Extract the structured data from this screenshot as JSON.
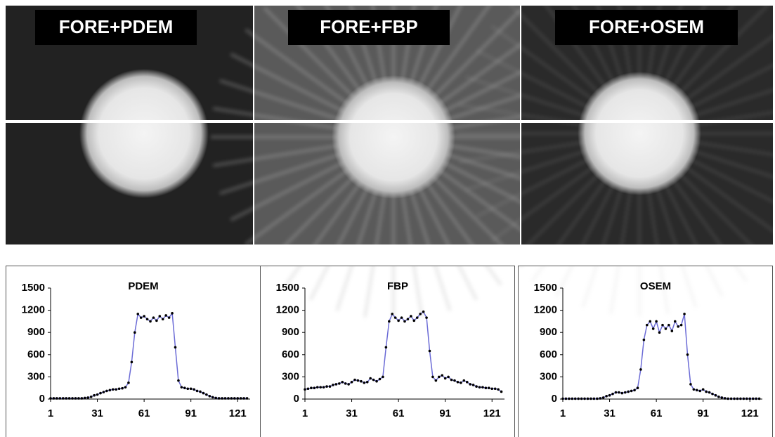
{
  "images": [
    {
      "label": "FORE+PDEM"
    },
    {
      "label": "FORE+FBP"
    },
    {
      "label": "FORE+OSEM"
    }
  ],
  "chart_data": [
    {
      "type": "line",
      "title": "PDEM",
      "color": "#6b6bd6",
      "x": [
        1,
        3,
        5,
        7,
        9,
        11,
        13,
        15,
        17,
        19,
        21,
        23,
        25,
        27,
        29,
        31,
        33,
        35,
        37,
        39,
        41,
        43,
        45,
        47,
        49,
        51,
        53,
        55,
        57,
        59,
        61,
        63,
        65,
        67,
        69,
        71,
        73,
        75,
        77,
        79,
        81,
        83,
        85,
        87,
        89,
        91,
        93,
        95,
        97,
        99,
        101,
        103,
        105,
        107,
        109,
        111,
        113,
        115,
        117,
        119,
        121,
        123,
        125,
        127
      ],
      "values": [
        10,
        10,
        10,
        10,
        10,
        10,
        10,
        10,
        10,
        10,
        10,
        15,
        20,
        30,
        50,
        60,
        80,
        95,
        110,
        120,
        130,
        130,
        140,
        145,
        160,
        220,
        500,
        900,
        1150,
        1100,
        1120,
        1080,
        1050,
        1100,
        1060,
        1120,
        1080,
        1130,
        1100,
        1160,
        700,
        250,
        160,
        150,
        140,
        140,
        130,
        110,
        100,
        80,
        60,
        40,
        25,
        15,
        10,
        10,
        10,
        10,
        10,
        10,
        10,
        10,
        10,
        10
      ],
      "xlim": [
        1,
        129
      ],
      "xticks": [
        1,
        31,
        61,
        91,
        121
      ],
      "ylim": [
        0,
        1500
      ],
      "yticks": [
        0,
        300,
        600,
        900,
        1200,
        1500
      ]
    },
    {
      "type": "line",
      "title": "FBP",
      "color": "#6b6bd6",
      "x": [
        1,
        3,
        5,
        7,
        9,
        11,
        13,
        15,
        17,
        19,
        21,
        23,
        25,
        27,
        29,
        31,
        33,
        35,
        37,
        39,
        41,
        43,
        45,
        47,
        49,
        51,
        53,
        55,
        57,
        59,
        61,
        63,
        65,
        67,
        69,
        71,
        73,
        75,
        77,
        79,
        81,
        83,
        85,
        87,
        89,
        91,
        93,
        95,
        97,
        99,
        101,
        103,
        105,
        107,
        109,
        111,
        113,
        115,
        117,
        119,
        121,
        123,
        125,
        127
      ],
      "values": [
        130,
        140,
        150,
        150,
        160,
        160,
        160,
        170,
        170,
        190,
        200,
        210,
        230,
        210,
        200,
        230,
        260,
        250,
        240,
        220,
        230,
        280,
        260,
        240,
        270,
        300,
        700,
        1050,
        1150,
        1100,
        1060,
        1100,
        1050,
        1080,
        1120,
        1060,
        1100,
        1150,
        1180,
        1100,
        650,
        300,
        250,
        300,
        320,
        280,
        300,
        260,
        250,
        230,
        220,
        250,
        230,
        200,
        190,
        170,
        160,
        160,
        150,
        150,
        140,
        140,
        130,
        100
      ],
      "xlim": [
        1,
        129
      ],
      "xticks": [
        1,
        31,
        61,
        91,
        121
      ],
      "ylim": [
        0,
        1500
      ],
      "yticks": [
        0,
        300,
        600,
        900,
        1200,
        1500
      ]
    },
    {
      "type": "line",
      "title": "OSEM",
      "color": "#6b6bd6",
      "x": [
        1,
        3,
        5,
        7,
        9,
        11,
        13,
        15,
        17,
        19,
        21,
        23,
        25,
        27,
        29,
        31,
        33,
        35,
        37,
        39,
        41,
        43,
        45,
        47,
        49,
        51,
        53,
        55,
        57,
        59,
        61,
        63,
        65,
        67,
        69,
        71,
        73,
        75,
        77,
        79,
        81,
        83,
        85,
        87,
        89,
        91,
        93,
        95,
        97,
        99,
        101,
        103,
        105,
        107,
        109,
        111,
        113,
        115,
        117,
        119,
        121,
        123,
        125,
        127
      ],
      "values": [
        5,
        5,
        5,
        5,
        5,
        5,
        5,
        5,
        5,
        5,
        5,
        5,
        10,
        20,
        40,
        50,
        70,
        90,
        90,
        80,
        90,
        100,
        110,
        120,
        150,
        400,
        800,
        1000,
        1050,
        950,
        1050,
        900,
        1000,
        950,
        1000,
        920,
        1050,
        980,
        1000,
        1150,
        600,
        200,
        130,
        120,
        110,
        130,
        100,
        90,
        70,
        50,
        30,
        20,
        10,
        5,
        5,
        5,
        5,
        5,
        5,
        5,
        5,
        5,
        5,
        5
      ],
      "xlim": [
        1,
        129
      ],
      "xticks": [
        1,
        31,
        61,
        91,
        121
      ],
      "ylim": [
        0,
        1500
      ],
      "yticks": [
        0,
        300,
        600,
        900,
        1200,
        1500
      ]
    }
  ]
}
